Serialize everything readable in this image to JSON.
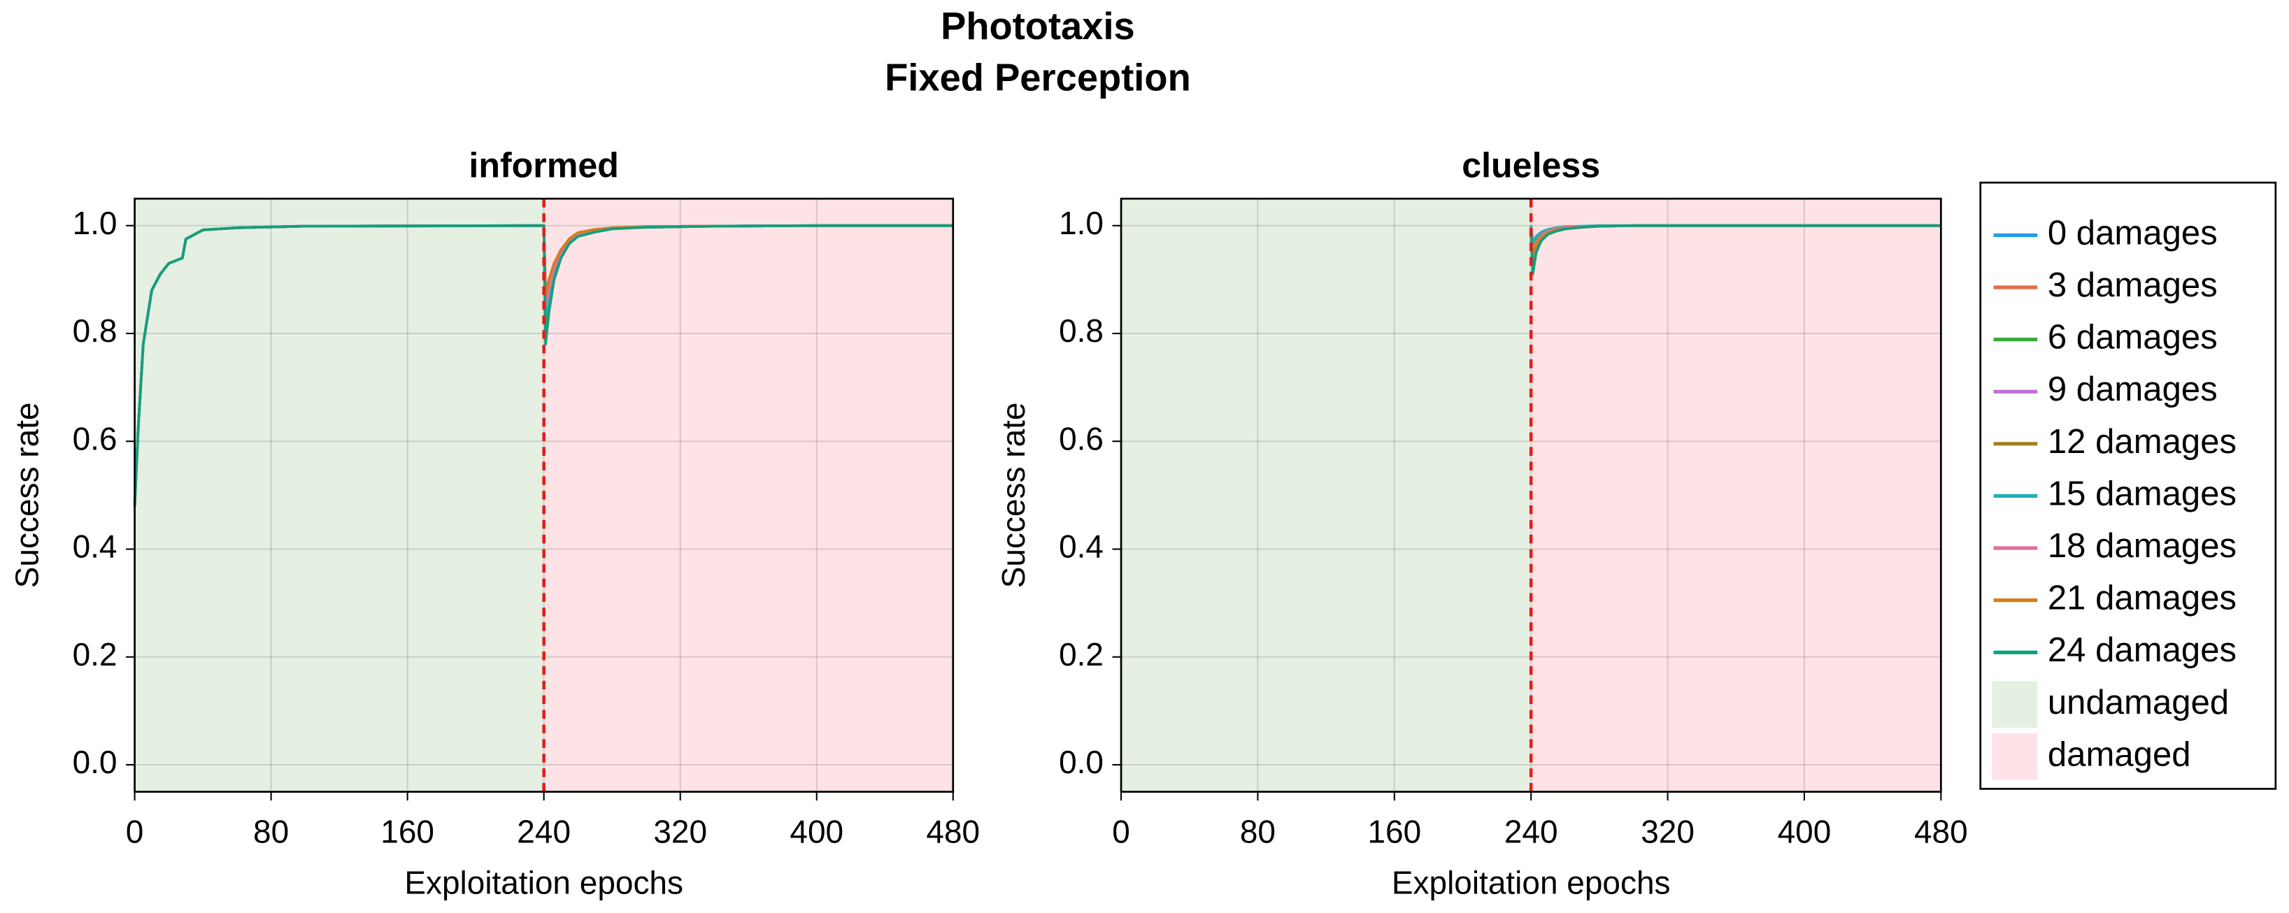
{
  "figure": {
    "title": "Phototaxis",
    "subtitle": "Fixed Perception"
  },
  "chart_data": [
    {
      "type": "line",
      "title": "informed",
      "xlabel": "Exploitation epochs",
      "ylabel": "Success rate",
      "xlim": [
        0,
        480
      ],
      "ylim": [
        -0.05,
        1.05
      ],
      "xticks": [
        0,
        80,
        160,
        240,
        320,
        400,
        480
      ],
      "yticks": [
        {
          "value": 0,
          "label": "0.0"
        },
        0.2,
        0.4,
        0.6,
        0.8,
        {
          "value": 1,
          "label": "1.0"
        }
      ],
      "grid": true,
      "vline": 240,
      "vline_color": "#e0201c",
      "regions": [
        {
          "name": "undamaged",
          "color": "#e5f0e3",
          "range": [
            0,
            240
          ]
        },
        {
          "name": "damaged",
          "color": "#fde3e5",
          "range": [
            240,
            480
          ]
        }
      ],
      "x": [
        0,
        2,
        5,
        10,
        15,
        20,
        28,
        30,
        40,
        60,
        100,
        240,
        241,
        243,
        246,
        250,
        255,
        260,
        270,
        280,
        300,
        340,
        400,
        480
      ],
      "series": [
        {
          "name": "0 damages",
          "color": "#1f9ee8",
          "values": [
            0.48,
            0.62,
            0.78,
            0.88,
            0.91,
            0.93,
            0.94,
            0.975,
            0.992,
            0.996,
            0.999,
            1.0,
            0.84,
            0.88,
            0.92,
            0.95,
            0.975,
            0.985,
            0.992,
            0.996,
            0.998,
            0.999,
            1.0,
            1.0
          ]
        },
        {
          "name": "3 damages",
          "color": "#e06c4c",
          "values": [
            0.48,
            0.62,
            0.78,
            0.88,
            0.91,
            0.93,
            0.94,
            0.975,
            0.992,
            0.996,
            0.999,
            1.0,
            0.82,
            0.87,
            0.91,
            0.945,
            0.97,
            0.983,
            0.99,
            0.995,
            0.998,
            0.999,
            1.0,
            1.0
          ]
        },
        {
          "name": "6 damages",
          "color": "#3aa83a",
          "values": [
            0.48,
            0.62,
            0.78,
            0.88,
            0.91,
            0.93,
            0.94,
            0.975,
            0.992,
            0.996,
            0.999,
            1.0,
            0.86,
            0.89,
            0.92,
            0.95,
            0.972,
            0.984,
            0.991,
            0.995,
            0.997,
            0.999,
            1.0,
            1.0
          ]
        },
        {
          "name": "9 damages",
          "color": "#c070d0",
          "values": [
            0.48,
            0.62,
            0.78,
            0.88,
            0.91,
            0.93,
            0.94,
            0.975,
            0.992,
            0.996,
            0.999,
            1.0,
            0.88,
            0.9,
            0.93,
            0.955,
            0.975,
            0.986,
            0.992,
            0.996,
            0.998,
            0.999,
            1.0,
            1.0
          ]
        },
        {
          "name": "12 damages",
          "color": "#a08020",
          "values": [
            0.48,
            0.62,
            0.78,
            0.88,
            0.91,
            0.93,
            0.94,
            0.975,
            0.992,
            0.996,
            0.999,
            1.0,
            0.8,
            0.85,
            0.9,
            0.94,
            0.968,
            0.98,
            0.989,
            0.994,
            0.997,
            0.999,
            1.0,
            1.0
          ]
        },
        {
          "name": "15 damages",
          "color": "#20b0b8",
          "values": [
            0.48,
            0.62,
            0.78,
            0.88,
            0.91,
            0.93,
            0.94,
            0.975,
            0.992,
            0.996,
            0.999,
            1.0,
            0.83,
            0.87,
            0.91,
            0.945,
            0.97,
            0.982,
            0.99,
            0.995,
            0.998,
            0.999,
            1.0,
            1.0
          ]
        },
        {
          "name": "18 damages",
          "color": "#e070a0",
          "values": [
            0.48,
            0.62,
            0.78,
            0.88,
            0.91,
            0.93,
            0.94,
            0.975,
            0.992,
            0.996,
            0.999,
            1.0,
            0.85,
            0.88,
            0.92,
            0.95,
            0.973,
            0.985,
            0.991,
            0.996,
            0.998,
            0.999,
            1.0,
            1.0
          ]
        },
        {
          "name": "21 damages",
          "color": "#d08020",
          "values": [
            0.48,
            0.62,
            0.78,
            0.88,
            0.91,
            0.93,
            0.94,
            0.975,
            0.992,
            0.996,
            0.999,
            1.0,
            0.87,
            0.9,
            0.93,
            0.955,
            0.976,
            0.987,
            0.993,
            0.996,
            0.998,
            0.999,
            1.0,
            1.0
          ]
        },
        {
          "name": "24 damages",
          "color": "#10a080",
          "values": [
            0.48,
            0.62,
            0.78,
            0.88,
            0.91,
            0.93,
            0.94,
            0.975,
            0.992,
            0.996,
            0.999,
            1.0,
            0.78,
            0.84,
            0.9,
            0.94,
            0.967,
            0.98,
            0.988,
            0.994,
            0.997,
            0.999,
            1.0,
            1.0
          ]
        }
      ]
    },
    {
      "type": "line",
      "title": "clueless",
      "xlabel": "Exploitation epochs",
      "ylabel": "Success rate",
      "xlim": [
        0,
        480
      ],
      "ylim": [
        -0.05,
        1.05
      ],
      "xticks": [
        0,
        80,
        160,
        240,
        320,
        400,
        480
      ],
      "yticks": [
        {
          "value": 0,
          "label": "0.0"
        },
        0.2,
        0.4,
        0.6,
        0.8,
        {
          "value": 1,
          "label": "1.0"
        }
      ],
      "grid": true,
      "vline": 240,
      "vline_color": "#e0201c",
      "regions": [
        {
          "name": "undamaged",
          "color": "#e5f0e3",
          "range": [
            0,
            240
          ]
        },
        {
          "name": "damaged",
          "color": "#fde3e5",
          "range": [
            240,
            480
          ]
        }
      ],
      "x": [
        240,
        241,
        243,
        246,
        250,
        255,
        260,
        270,
        280,
        300,
        340,
        400,
        480
      ],
      "series": [
        {
          "name": "0 damages",
          "color": "#1f9ee8",
          "values": [
            0.99,
            0.95,
            0.97,
            0.98,
            0.988,
            0.993,
            0.996,
            0.998,
            0.999,
            1.0,
            1.0,
            1.0,
            1.0
          ]
        },
        {
          "name": "3 damages",
          "color": "#e06c4c",
          "values": [
            0.98,
            0.93,
            0.96,
            0.975,
            0.985,
            0.99,
            0.994,
            0.997,
            0.999,
            1.0,
            1.0,
            1.0,
            1.0
          ]
        },
        {
          "name": "6 damages",
          "color": "#3aa83a",
          "values": [
            1.0,
            0.96,
            0.975,
            0.985,
            0.99,
            0.994,
            0.997,
            0.998,
            0.999,
            1.0,
            1.0,
            1.0,
            1.0
          ]
        },
        {
          "name": "9 damages",
          "color": "#c070d0",
          "values": [
            0.99,
            0.94,
            0.965,
            0.98,
            0.988,
            0.993,
            0.996,
            0.998,
            0.999,
            1.0,
            1.0,
            1.0,
            1.0
          ]
        },
        {
          "name": "12 damages",
          "color": "#a08020",
          "values": [
            0.98,
            0.92,
            0.955,
            0.975,
            0.985,
            0.99,
            0.994,
            0.997,
            0.999,
            1.0,
            1.0,
            1.0,
            1.0
          ]
        },
        {
          "name": "15 damages",
          "color": "#20b0b8",
          "values": [
            1.0,
            0.97,
            0.98,
            0.988,
            0.993,
            0.996,
            0.998,
            0.999,
            1.0,
            1.0,
            1.0,
            1.0,
            1.0
          ]
        },
        {
          "name": "18 damages",
          "color": "#e070a0",
          "values": [
            0.99,
            0.95,
            0.97,
            0.982,
            0.99,
            0.994,
            0.997,
            0.998,
            0.999,
            1.0,
            1.0,
            1.0,
            1.0
          ]
        },
        {
          "name": "21 damages",
          "color": "#d08020",
          "values": [
            0.98,
            0.94,
            0.965,
            0.978,
            0.987,
            0.992,
            0.995,
            0.997,
            0.999,
            1.0,
            1.0,
            1.0,
            1.0
          ]
        },
        {
          "name": "24 damages",
          "color": "#10a080",
          "values": [
            0.99,
            0.91,
            0.95,
            0.972,
            0.984,
            0.99,
            0.994,
            0.997,
            0.999,
            1.0,
            1.0,
            1.0,
            1.0
          ]
        }
      ]
    }
  ]
}
